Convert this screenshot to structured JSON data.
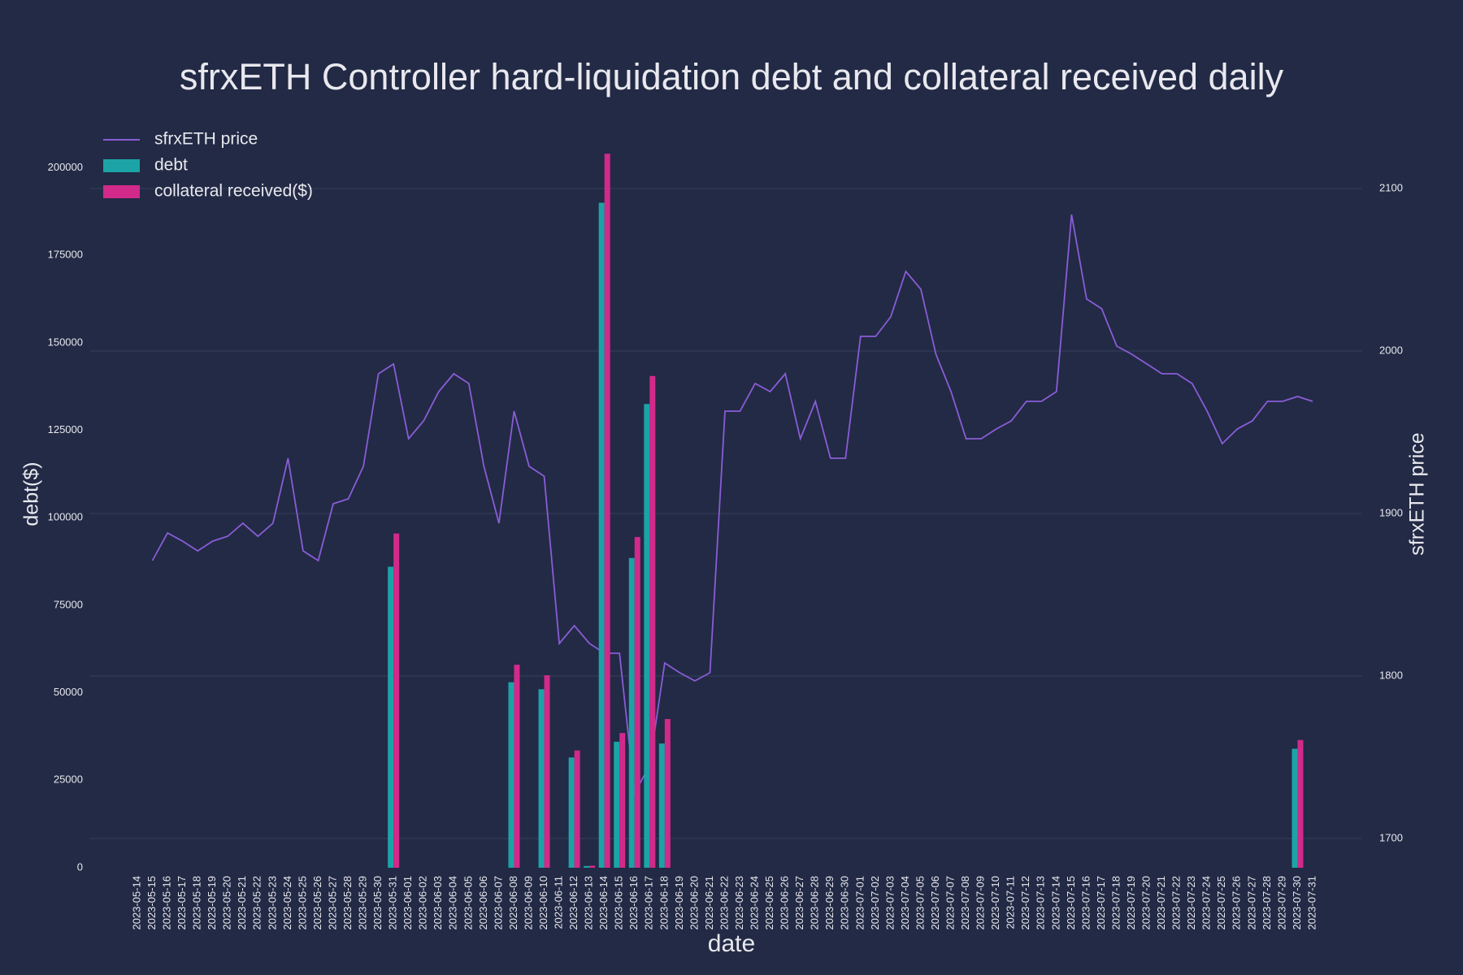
{
  "chart_data": {
    "type": "bar",
    "title": "sfrxETH Controller hard-liquidation debt and collateral received daily",
    "x_label": "date",
    "y_label": "debt($)",
    "y2_label": "sfrxETH price",
    "categories": [
      "2023-05-14",
      "2023-05-15",
      "2023-05-16",
      "2023-05-17",
      "2023-05-18",
      "2023-05-19",
      "2023-05-20",
      "2023-05-21",
      "2023-05-22",
      "2023-05-23",
      "2023-05-24",
      "2023-05-25",
      "2023-05-26",
      "2023-05-27",
      "2023-05-28",
      "2023-05-29",
      "2023-05-30",
      "2023-05-31",
      "2023-06-01",
      "2023-06-02",
      "2023-06-03",
      "2023-06-04",
      "2023-06-05",
      "2023-06-06",
      "2023-06-07",
      "2023-06-08",
      "2023-06-09",
      "2023-06-10",
      "2023-06-11",
      "2023-06-12",
      "2023-06-13",
      "2023-06-14",
      "2023-06-15",
      "2023-06-16",
      "2023-06-17",
      "2023-06-18",
      "2023-06-19",
      "2023-06-20",
      "2023-06-21",
      "2023-06-22",
      "2023-06-23",
      "2023-06-24",
      "2023-06-25",
      "2023-06-26",
      "2023-06-27",
      "2023-06-28",
      "2023-06-29",
      "2023-06-30",
      "2023-07-01",
      "2023-07-02",
      "2023-07-03",
      "2023-07-04",
      "2023-07-05",
      "2023-07-06",
      "2023-07-07",
      "2023-07-08",
      "2023-07-09",
      "2023-07-10",
      "2023-07-11",
      "2023-07-12",
      "2023-07-13",
      "2023-07-14",
      "2023-07-15",
      "2023-07-16",
      "2023-07-17",
      "2023-07-18",
      "2023-07-19",
      "2023-07-20",
      "2023-07-21",
      "2023-07-22",
      "2023-07-23",
      "2023-07-24",
      "2023-07-25",
      "2023-07-26",
      "2023-07-27",
      "2023-07-28",
      "2023-07-29",
      "2023-07-30",
      "2023-07-31"
    ],
    "series": [
      {
        "name": "sfrxETH price",
        "type": "line",
        "axis": "y2",
        "color": "#8a5cd6",
        "values": [
          null,
          1871,
          1888,
          1883,
          1877,
          1883,
          1886,
          1894,
          1886,
          1894,
          1934,
          1877,
          1871,
          1906,
          1909,
          1929,
          1986,
          1992,
          1946,
          1957,
          1975,
          1986,
          1980,
          1929,
          1894,
          1963,
          1929,
          1923,
          1820,
          1831,
          1820,
          1814,
          1814,
          1728,
          1745,
          1808,
          1802,
          1797,
          1802,
          1963,
          1963,
          1980,
          1975,
          1986,
          1946,
          1969,
          1934,
          1934,
          2009,
          2009,
          2021,
          2049,
          2038,
          1998,
          1975,
          1946,
          1946,
          1952,
          1957,
          1969,
          1969,
          1975,
          2084,
          2032,
          2026,
          2003,
          1998,
          1992,
          1986,
          1986,
          1980,
          1963,
          1943,
          1952,
          1957,
          1969,
          1969,
          1972,
          1969
        ]
      },
      {
        "name": "debt",
        "color": "#1ca3a6",
        "values": [
          0,
          0,
          0,
          0,
          0,
          0,
          0,
          0,
          0,
          0,
          0,
          0,
          0,
          0,
          0,
          0,
          0,
          86000,
          0,
          0,
          0,
          0,
          0,
          0,
          0,
          53000,
          0,
          51000,
          0,
          31500,
          500,
          190000,
          36000,
          88500,
          132500,
          35500,
          0,
          0,
          0,
          0,
          0,
          0,
          0,
          0,
          0,
          0,
          0,
          0,
          0,
          0,
          0,
          0,
          0,
          0,
          0,
          0,
          0,
          0,
          0,
          0,
          0,
          0,
          0,
          0,
          0,
          0,
          0,
          0,
          0,
          0,
          0,
          0,
          0,
          0,
          0,
          0,
          0,
          34000,
          0
        ]
      },
      {
        "name": "collateral received($)",
        "color": "#d12a8a",
        "values": [
          0,
          0,
          0,
          0,
          0,
          0,
          0,
          0,
          0,
          0,
          0,
          0,
          0,
          0,
          0,
          0,
          0,
          95500,
          0,
          0,
          0,
          0,
          0,
          0,
          0,
          58000,
          0,
          55000,
          0,
          33500,
          600,
          204000,
          38500,
          94500,
          140500,
          42500,
          0,
          0,
          0,
          0,
          0,
          0,
          0,
          0,
          0,
          0,
          0,
          0,
          0,
          0,
          0,
          0,
          0,
          0,
          0,
          0,
          0,
          0,
          0,
          0,
          0,
          0,
          0,
          0,
          0,
          0,
          0,
          0,
          0,
          0,
          0,
          0,
          0,
          0,
          0,
          0,
          0,
          36500,
          0
        ]
      }
    ],
    "ylim": [
      0,
      208000
    ],
    "yticks": [
      0,
      25000,
      50000,
      75000,
      100000,
      125000,
      150000,
      175000,
      200000
    ],
    "y2lim": [
      1682,
      2130
    ],
    "y2ticks": [
      1700,
      1800,
      1900,
      2000,
      2100
    ],
    "grid": true,
    "legend": "top-left",
    "background": "#222a45"
  }
}
